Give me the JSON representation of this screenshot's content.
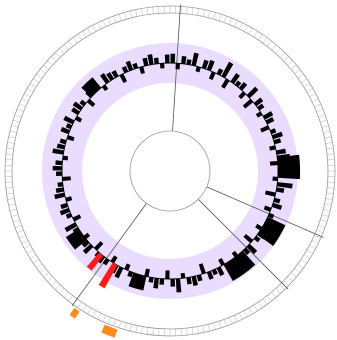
{
  "colors": {
    "background": "#ffffff",
    "band": "#e9dcff",
    "bars": "#000000",
    "highlight": "#ff1a1a",
    "outer_marks": "#ff8c1a",
    "ring_stroke": "#9a9a9a",
    "ruler_tick": "#b5b5b5",
    "pointer_line": "#555555"
  },
  "circular_plot": {
    "ruler_ticks": 180,
    "bar_track": [
      0.55,
      -0.35,
      0.45,
      0.3,
      0.75,
      -0.3,
      0.5,
      0.6,
      -0.45,
      0.35,
      0.95,
      -0.55,
      0.6,
      0.3,
      0.45,
      -0.4,
      0.7,
      -0.6,
      0.5,
      0.35,
      -0.3,
      0.55,
      0.45,
      -0.5,
      0.3,
      0.6,
      0.4,
      -0.35,
      0.55,
      0.75,
      -0.45,
      0.3,
      0.5,
      -0.3,
      0.9,
      0.45,
      -0.6,
      0.35,
      0.55,
      -0.4,
      0.3,
      0.65,
      0.5,
      -0.35,
      0.45,
      0.3,
      -0.55,
      0.6,
      0.35,
      0.4,
      -0.3,
      0.55,
      0.7,
      -0.4,
      0.5,
      0.3,
      0.45,
      -0.6,
      0.35,
      0.55,
      0.4,
      -0.3,
      0.8,
      0.45,
      -0.5,
      0.35,
      0.6,
      0.3,
      -0.45,
      0.55,
      0.4,
      0.3,
      -0.35,
      0.65,
      0.5,
      -0.4,
      0.35,
      0.45,
      0.3,
      -0.55,
      0.6,
      0.4,
      -0.3,
      0.5,
      0.35,
      0.7,
      -0.45,
      0.3,
      0.55,
      0.4,
      -0.35,
      0.6,
      0.45,
      0.3,
      -0.5,
      0.35,
      0.55,
      0.4,
      -0.3,
      0.65,
      0.45,
      0.35,
      -0.4,
      0.5,
      0.3,
      0.6,
      -0.35,
      0.45,
      0.55,
      0.3,
      -0.45,
      0.4,
      0.5,
      0.35,
      -0.3,
      0.6,
      0.45,
      0.4,
      -0.5,
      0.35,
      0.55,
      0.3,
      -0.4,
      0.45,
      0.6,
      0.35,
      -0.3,
      0.5
    ],
    "heavy_blocks": [
      {
        "position": 0.245,
        "extent": 0.03,
        "value": 1.3
      },
      {
        "position": 0.335,
        "extent": 0.03,
        "value": 1.15
      },
      {
        "position": 0.4,
        "extent": 0.035,
        "value": 1.1
      },
      {
        "position": 0.545,
        "extent": 0.02,
        "value": 0.85
      },
      {
        "position": 0.65,
        "extent": 0.02,
        "value": 0.9
      },
      {
        "position": 0.88,
        "extent": 0.02,
        "value": 0.8
      }
    ],
    "highlighted_bars": [
      {
        "position": 0.585,
        "value": 1.55
      },
      {
        "position": 0.61,
        "value": 1.1
      }
    ],
    "outer_marks": [
      {
        "position": 0.555,
        "extent": 0.008,
        "level": 0.55
      },
      {
        "position": 0.56,
        "extent": 0.008,
        "level": 0.55
      },
      {
        "position": 0.594,
        "extent": 0.006,
        "level": 0.55
      }
    ],
    "pointer_lines": [
      0.01,
      0.315,
      0.375,
      0.6
    ]
  }
}
